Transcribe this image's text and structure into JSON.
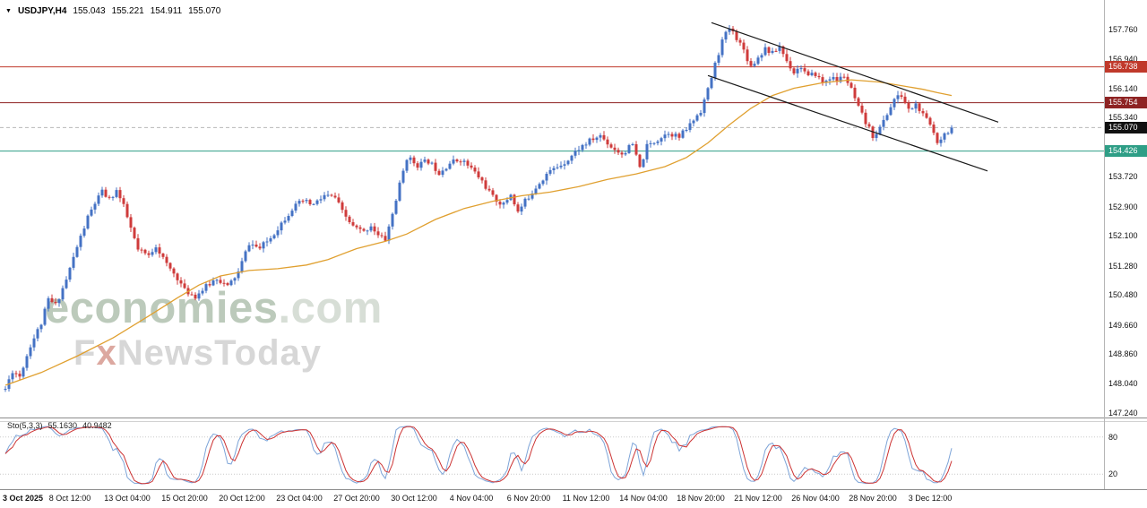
{
  "header": {
    "dropdown_icon": "▼",
    "symbol": "USDJPY,H4",
    "open": "155.043",
    "high": "155.221",
    "low": "154.911",
    "close": "155.070"
  },
  "watermark": {
    "brand": "economies",
    "tld": ".com",
    "fx_f": "F",
    "fx_x": "x",
    "fx_rest": "NewsToday"
  },
  "indicator": {
    "label": "Sto(5,3,3)",
    "value1": "55.1630",
    "value2": "40.9482"
  },
  "chart_data": {
    "type": "candlestick",
    "symbol": "USDJPY",
    "timeframe": "H4",
    "visible_bars": 265,
    "bull_color": "#4472c4",
    "bear_color": "#cf3b3b",
    "ma_color": "#e0a030",
    "sto_k_color": "#7da4d8",
    "sto_d_color": "#cc3333",
    "price_axis_ticks": [
      157.76,
      156.94,
      156.14,
      155.34,
      153.72,
      152.9,
      152.1,
      151.28,
      150.48,
      149.66,
      148.86,
      148.04,
      147.24
    ],
    "time_axis": [
      "3 Oct 2025",
      "8 Oct 12:00",
      "13 Oct 04:00",
      "15 Oct 20:00",
      "20 Oct 12:00",
      "23 Oct 04:00",
      "27 Oct 20:00",
      "30 Oct 12:00",
      "4 Nov 04:00",
      "6 Nov 20:00",
      "11 Nov 12:00",
      "14 Nov 04:00",
      "18 Nov 20:00",
      "21 Nov 12:00",
      "26 Nov 04:00",
      "28 Nov 20:00",
      "3 Dec 12:00"
    ],
    "levels": [
      {
        "price": 156.738,
        "label": "156.738",
        "color": "#c0392b"
      },
      {
        "price": 155.754,
        "label": "155.754",
        "color": "#8e2323"
      },
      {
        "price": 154.426,
        "label": "154.426",
        "color": "#2e9e86"
      }
    ],
    "current_price": {
      "price": 155.07,
      "label": "155.070",
      "badge_color": "#111111",
      "line_color": "#b8b8b8"
    },
    "trendlines": [
      {
        "i1": 197,
        "p1": 157.95,
        "i2": 277,
        "p2": 155.22
      },
      {
        "i1": 196,
        "p1": 156.5,
        "i2": 274,
        "p2": 153.88
      }
    ],
    "price_path": [
      [
        0,
        147.9
      ],
      [
        2,
        148.4
      ],
      [
        4,
        148.25
      ],
      [
        7,
        149.1
      ],
      [
        10,
        149.7
      ],
      [
        12,
        150.35
      ],
      [
        14,
        150.2
      ],
      [
        17,
        150.9
      ],
      [
        20,
        151.8
      ],
      [
        23,
        152.6
      ],
      [
        25,
        153.0
      ],
      [
        27,
        153.3
      ],
      [
        29,
        153.1
      ],
      [
        31,
        153.35
      ],
      [
        33,
        152.9
      ],
      [
        35,
        152.3
      ],
      [
        37,
        151.7
      ],
      [
        40,
        151.55
      ],
      [
        42,
        151.85
      ],
      [
        45,
        151.3
      ],
      [
        48,
        150.95
      ],
      [
        50,
        150.6
      ],
      [
        53,
        150.45
      ],
      [
        56,
        150.7
      ],
      [
        59,
        150.95
      ],
      [
        62,
        150.7
      ],
      [
        65,
        151.1
      ],
      [
        68,
        151.9
      ],
      [
        71,
        151.75
      ],
      [
        74,
        152.05
      ],
      [
        77,
        152.45
      ],
      [
        80,
        152.85
      ],
      [
        83,
        153.05
      ],
      [
        86,
        152.95
      ],
      [
        89,
        153.2
      ],
      [
        92,
        153.15
      ],
      [
        94,
        152.75
      ],
      [
        97,
        152.35
      ],
      [
        100,
        152.2
      ],
      [
        102,
        152.4
      ],
      [
        104,
        152.1
      ],
      [
        106,
        152.0
      ],
      [
        108,
        152.7
      ],
      [
        110,
        153.5
      ],
      [
        112,
        154.25
      ],
      [
        115,
        154.05
      ],
      [
        118,
        154.15
      ],
      [
        121,
        153.85
      ],
      [
        124,
        154.1
      ],
      [
        127,
        154.2
      ],
      [
        130,
        153.95
      ],
      [
        133,
        153.6
      ],
      [
        136,
        153.15
      ],
      [
        139,
        152.95
      ],
      [
        141,
        153.25
      ],
      [
        143,
        152.75
      ],
      [
        145,
        153.05
      ],
      [
        148,
        153.45
      ],
      [
        151,
        153.8
      ],
      [
        154,
        154.0
      ],
      [
        157,
        154.2
      ],
      [
        160,
        154.5
      ],
      [
        163,
        154.7
      ],
      [
        166,
        154.85
      ],
      [
        169,
        154.55
      ],
      [
        172,
        154.35
      ],
      [
        175,
        154.6
      ],
      [
        177,
        153.95
      ],
      [
        179,
        154.55
      ],
      [
        182,
        154.75
      ],
      [
        185,
        154.95
      ],
      [
        188,
        154.8
      ],
      [
        191,
        155.15
      ],
      [
        194,
        155.55
      ],
      [
        196,
        156.1
      ],
      [
        198,
        156.8
      ],
      [
        200,
        157.45
      ],
      [
        202,
        157.8
      ],
      [
        204,
        157.55
      ],
      [
        206,
        157.2
      ],
      [
        208,
        156.75
      ],
      [
        210,
        157.0
      ],
      [
        212,
        157.25
      ],
      [
        214,
        157.1
      ],
      [
        216,
        157.3
      ],
      [
        218,
        156.9
      ],
      [
        220,
        156.6
      ],
      [
        222,
        156.75
      ],
      [
        224,
        156.45
      ],
      [
        226,
        156.55
      ],
      [
        228,
        156.3
      ],
      [
        230,
        156.45
      ],
      [
        232,
        156.35
      ],
      [
        234,
        156.5
      ],
      [
        236,
        156.1
      ],
      [
        238,
        155.6
      ],
      [
        240,
        155.2
      ],
      [
        242,
        154.85
      ],
      [
        244,
        155.05
      ],
      [
        246,
        155.45
      ],
      [
        248,
        155.85
      ],
      [
        250,
        155.95
      ],
      [
        252,
        155.55
      ],
      [
        254,
        155.7
      ],
      [
        256,
        155.4
      ],
      [
        258,
        155.15
      ],
      [
        260,
        154.7
      ],
      [
        262,
        154.9
      ],
      [
        264,
        155.07
      ]
    ],
    "ma_path": [
      [
        0,
        148.0
      ],
      [
        10,
        148.35
      ],
      [
        20,
        148.8
      ],
      [
        30,
        149.3
      ],
      [
        40,
        149.9
      ],
      [
        48,
        150.4
      ],
      [
        54,
        150.75
      ],
      [
        60,
        151.0
      ],
      [
        68,
        151.15
      ],
      [
        76,
        151.2
      ],
      [
        84,
        151.3
      ],
      [
        90,
        151.45
      ],
      [
        98,
        151.75
      ],
      [
        106,
        151.95
      ],
      [
        112,
        152.15
      ],
      [
        120,
        152.55
      ],
      [
        128,
        152.85
      ],
      [
        136,
        153.05
      ],
      [
        144,
        153.2
      ],
      [
        152,
        153.3
      ],
      [
        160,
        153.45
      ],
      [
        168,
        153.65
      ],
      [
        176,
        153.8
      ],
      [
        184,
        154.0
      ],
      [
        190,
        154.25
      ],
      [
        196,
        154.65
      ],
      [
        202,
        155.15
      ],
      [
        208,
        155.6
      ],
      [
        214,
        155.95
      ],
      [
        220,
        156.15
      ],
      [
        228,
        156.3
      ],
      [
        236,
        156.38
      ],
      [
        244,
        156.32
      ],
      [
        250,
        156.22
      ],
      [
        256,
        156.12
      ],
      [
        260,
        156.03
      ],
      [
        264,
        155.95
      ]
    ],
    "stochastic": {
      "k_period": 5,
      "d_period": 3,
      "slowing": 3,
      "levels": [
        80,
        20
      ],
      "last_k": 55.163,
      "last_d": 40.9482
    }
  }
}
